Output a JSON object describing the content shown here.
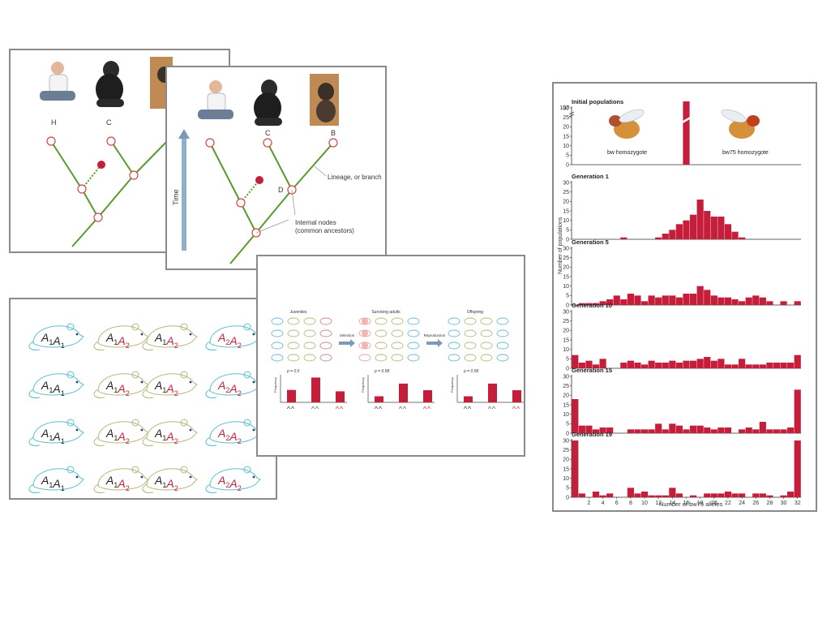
{
  "colors": {
    "branch": "#5a9a2a",
    "node_stroke": "#d04848",
    "dot": "#c41e3a",
    "bar": "#c41e3a",
    "arrow": "#7a9ab5",
    "a1": "#222222",
    "a2": "#c41e3a",
    "mouse_cyan": "#5bbfcf",
    "mouse_olive": "#b5b87a"
  },
  "tree_back": {
    "labels": {
      "h": "H",
      "c": "C"
    },
    "images": [
      "human-photo",
      "chimpanzee-photo",
      "bonobo-photo"
    ]
  },
  "tree_front": {
    "labels": {
      "c": "C",
      "b": "B",
      "d": "D"
    },
    "time_label": "Time",
    "branch_label": "Lineage, or branch",
    "internal_nodes_label_1": "Internal nodes",
    "internal_nodes_label_2": "(common ancestors)",
    "images": [
      "human-photo",
      "chimpanzee-photo",
      "bonobo-photo"
    ]
  },
  "mice": {
    "rows": [
      [
        "A1A1",
        "A1A2",
        "A1A2",
        "A2A2"
      ],
      [
        "A1A1",
        "A1A2",
        "A1A2",
        "A2A2"
      ],
      [
        "A1A1",
        "A1A2",
        "A1A2",
        "A2A2"
      ],
      [
        "A1A1",
        "A1A2",
        "A1A2",
        "A2A2"
      ]
    ]
  },
  "selection": {
    "stages": [
      {
        "title": "Juveniles",
        "p_label": "p = 0.5",
        "values": [
          0.45,
          0.9,
          0.4
        ]
      },
      {
        "title": "Surviving adults",
        "p_label": "p = 0.58",
        "values": [
          0.22,
          0.68,
          0.44
        ]
      },
      {
        "title": "Offspring",
        "p_label": "p = 0.58",
        "values": [
          0.22,
          0.68,
          0.44
        ]
      }
    ],
    "arrow_labels": [
      "Selection",
      "Reproduction"
    ],
    "ylabel": "Frequency"
  },
  "drift": {
    "ylabel": "Number of populations",
    "xlabel": "Number of bw75 alleles",
    "x_ticks": [
      "2",
      "4",
      "6",
      "8",
      "10",
      "12",
      "14",
      "16",
      "18",
      "20",
      "22",
      "24",
      "26",
      "28",
      "30",
      "32"
    ],
    "y_ticks": [
      "0",
      "5",
      "10",
      "15",
      "20",
      "25",
      "30"
    ],
    "bw_label": "bw homozygote",
    "bw75_label": "bw75 homozygote",
    "initial_axis_break": "107"
  },
  "chart_data": [
    {
      "type": "bar",
      "title": "Initial populations",
      "xlabel": "Number of bw75 alleles",
      "ylabel": "Number of populations",
      "x": [
        0,
        1,
        2,
        3,
        4,
        5,
        6,
        7,
        8,
        9,
        10,
        11,
        12,
        13,
        14,
        15,
        16,
        17,
        18,
        19,
        20,
        21,
        22,
        23,
        24,
        25,
        26,
        27,
        28,
        29,
        30,
        31,
        32
      ],
      "values": [
        0,
        0,
        0,
        0,
        0,
        0,
        0,
        0,
        0,
        0,
        0,
        0,
        0,
        0,
        0,
        0,
        107,
        0,
        0,
        0,
        0,
        0,
        0,
        0,
        0,
        0,
        0,
        0,
        0,
        0,
        0,
        0,
        0
      ],
      "ylim": [
        0,
        30
      ],
      "axis_break": true
    },
    {
      "type": "bar",
      "title": "Generation 1",
      "x": [
        0,
        1,
        2,
        3,
        4,
        5,
        6,
        7,
        8,
        9,
        10,
        11,
        12,
        13,
        14,
        15,
        16,
        17,
        18,
        19,
        20,
        21,
        22,
        23,
        24,
        25,
        26,
        27,
        28,
        29,
        30,
        31,
        32
      ],
      "values": [
        0,
        0,
        0,
        0,
        0,
        0,
        0,
        1,
        0,
        0,
        0,
        0,
        1,
        3,
        5,
        8,
        10,
        13,
        21,
        15,
        12,
        12,
        8,
        4,
        1,
        0,
        0,
        0,
        0,
        0,
        0,
        0,
        0
      ],
      "ylim": [
        0,
        30
      ]
    },
    {
      "type": "bar",
      "title": "Generation 5",
      "x": [
        0,
        1,
        2,
        3,
        4,
        5,
        6,
        7,
        8,
        9,
        10,
        11,
        12,
        13,
        14,
        15,
        16,
        17,
        18,
        19,
        20,
        21,
        22,
        23,
        24,
        25,
        26,
        27,
        28,
        29,
        30,
        31,
        32
      ],
      "values": [
        0,
        1,
        1,
        1,
        2,
        3,
        5,
        3,
        6,
        5,
        2,
        5,
        4,
        5,
        5,
        4,
        6,
        6,
        10,
        8,
        5,
        4,
        4,
        3,
        2,
        4,
        5,
        4,
        2,
        0,
        2,
        0,
        2
      ],
      "ylim": [
        0,
        30
      ]
    },
    {
      "type": "bar",
      "title": "Generation 10",
      "x": [
        0,
        1,
        2,
        3,
        4,
        5,
        6,
        7,
        8,
        9,
        10,
        11,
        12,
        13,
        14,
        15,
        16,
        17,
        18,
        19,
        20,
        21,
        22,
        23,
        24,
        25,
        26,
        27,
        28,
        29,
        30,
        31,
        32
      ],
      "values": [
        7,
        3,
        4,
        2,
        5,
        0,
        0,
        3,
        4,
        3,
        2,
        4,
        3,
        3,
        4,
        3,
        4,
        4,
        5,
        6,
        4,
        5,
        2,
        2,
        5,
        2,
        2,
        2,
        3,
        3,
        3,
        3,
        7
      ],
      "ylim": [
        0,
        30
      ]
    },
    {
      "type": "bar",
      "title": "Generation 15",
      "x": [
        0,
        1,
        2,
        3,
        4,
        5,
        6,
        7,
        8,
        9,
        10,
        11,
        12,
        13,
        14,
        15,
        16,
        17,
        18,
        19,
        20,
        21,
        22,
        23,
        24,
        25,
        26,
        27,
        28,
        29,
        30,
        31,
        32
      ],
      "values": [
        18,
        4,
        4,
        2,
        3,
        3,
        0,
        0,
        2,
        2,
        2,
        2,
        5,
        2,
        5,
        4,
        2,
        4,
        4,
        3,
        2,
        3,
        3,
        0,
        2,
        3,
        2,
        6,
        2,
        2,
        2,
        3,
        23
      ],
      "ylim": [
        0,
        30
      ]
    },
    {
      "type": "bar",
      "title": "Generation 19",
      "x": [
        0,
        1,
        2,
        3,
        4,
        5,
        6,
        7,
        8,
        9,
        10,
        11,
        12,
        13,
        14,
        15,
        16,
        17,
        18,
        19,
        20,
        21,
        22,
        23,
        24,
        25,
        26,
        27,
        28,
        29,
        30,
        31,
        32
      ],
      "values": [
        30,
        2,
        0,
        3,
        1,
        2,
        0,
        0,
        5,
        2,
        3,
        1,
        1,
        1,
        5,
        2,
        0,
        1,
        0,
        2,
        2,
        2,
        3,
        2,
        2,
        0,
        2,
        2,
        1,
        0,
        1,
        3,
        30
      ],
      "ylim": [
        0,
        30
      ]
    }
  ]
}
